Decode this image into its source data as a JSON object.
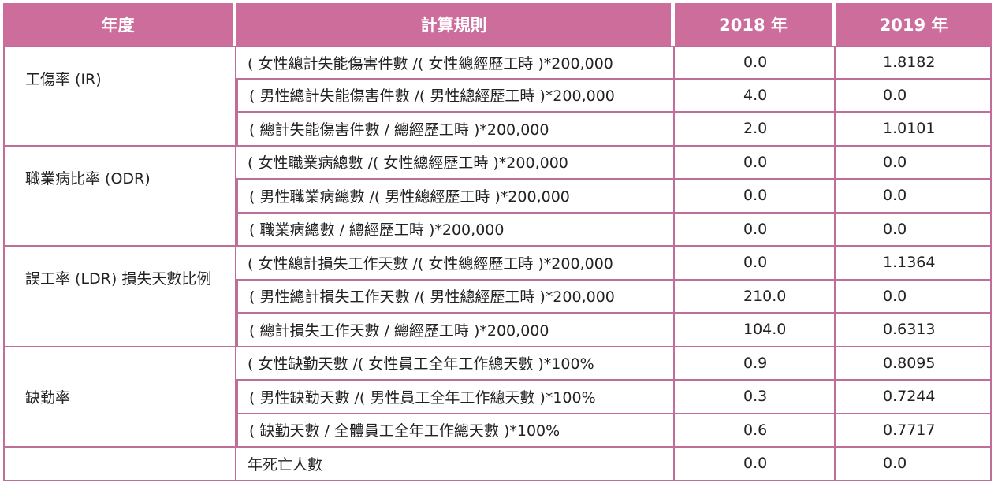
{
  "headers": [
    "年度",
    "計算規則",
    "2018 年",
    "2019 年"
  ],
  "groups": [
    {
      "category": "工傷率 (IR)",
      "rows": [
        {
          "rule": "( 女性總計失能傷害件數 /( 女性總經歷工時 )*200,000",
          "y2018": "0.0",
          "y2019": "1.8182"
        },
        {
          "rule": "( 男性總計失能傷害件數 /( 男性總經歷工時 )*200,000",
          "y2018": "4.0",
          "y2019": "0.0"
        },
        {
          "rule": "( 總計失能傷害件數 / 總經歷工時 )*200,000",
          "y2018": "2.0",
          "y2019": "1.0101"
        }
      ]
    },
    {
      "category": "職業病比率 (ODR)",
      "rows": [
        {
          "rule": "( 女性職業病總數 /( 女性總經歷工時 )*200,000",
          "y2018": "0.0",
          "y2019": "0.0"
        },
        {
          "rule": "( 男性職業病總數 /( 男性總經歷工時 )*200,000",
          "y2018": "0.0",
          "y2019": "0.0"
        },
        {
          "rule": "( 職業病總數 / 總經歷工時 )*200,000",
          "y2018": "0.0",
          "y2019": "0.0"
        }
      ]
    },
    {
      "category": "誤工率 (LDR) 損失天數比例",
      "rows": [
        {
          "rule": "( 女性總計損失工作天數 /( 女性總經歷工時 )*200,000",
          "y2018": "0.0",
          "y2019": "1.1364"
        },
        {
          "rule": "( 男性總計損失工作天數 /( 男性總經歷工時 )*200,000",
          "y2018": "210.0",
          "y2019": "0.0"
        },
        {
          "rule": "( 總計損失工作天數 / 總經歷工時 )*200,000",
          "y2018": "104.0",
          "y2019": "0.6313"
        }
      ]
    },
    {
      "category": "缺勤率",
      "rows": [
        {
          "rule": "( 女性缺勤天數 /( 女性員工全年工作總天數 )*100%",
          "y2018": "0.9",
          "y2019": "0.8095"
        },
        {
          "rule": "( 男性缺勤天數 /( 男性員工全年工作總天數 )*100%",
          "y2018": "0.3",
          "y2019": "0.7244"
        },
        {
          "rule": "( 缺勤天數 / 全體員工全年工作總天數 )*100%",
          "y2018": "0.6",
          "y2019": "0.7717"
        }
      ]
    },
    {
      "category": "",
      "rows": [
        {
          "rule": "年死亡人數",
          "y2018": "0.0",
          "y2019": "0.0"
        }
      ]
    }
  ],
  "colors": {
    "header_bg": "#cc6d9c",
    "header_shadow": "#a04c7c",
    "border": "#bf6d99"
  }
}
